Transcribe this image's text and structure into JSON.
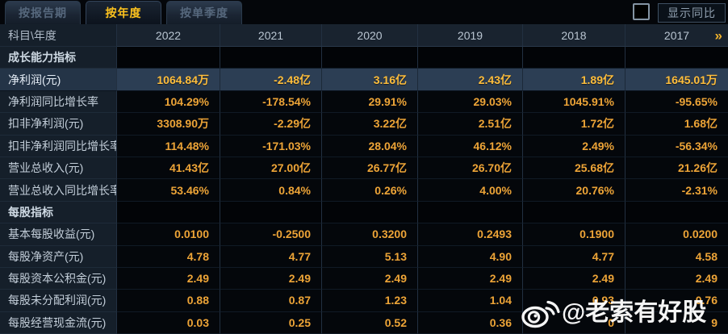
{
  "tabbar": {
    "tabs": [
      {
        "label": "按报告期",
        "active": false
      },
      {
        "label": "按年度",
        "active": true
      },
      {
        "label": "按单季度",
        "active": false
      }
    ],
    "yoy_toggle": {
      "label": "显示同比",
      "checked": false
    }
  },
  "table": {
    "columns": [
      "科目\\年度",
      "2022",
      "2021",
      "2020",
      "2019",
      "2018",
      "2017"
    ],
    "more_indicator": "»",
    "rows": [
      {
        "type": "section",
        "label": "成长能力指标",
        "values": [
          "",
          "",
          "",
          "",
          "",
          ""
        ]
      },
      {
        "type": "data",
        "highlight": true,
        "label": "净利润(元)",
        "values": [
          "1064.84万",
          "-2.48亿",
          "3.16亿",
          "2.43亿",
          "1.89亿",
          "1645.01万"
        ]
      },
      {
        "type": "data",
        "label": "净利润同比增长率",
        "values": [
          "104.29%",
          "-178.54%",
          "29.91%",
          "29.03%",
          "1045.91%",
          "-95.65%"
        ]
      },
      {
        "type": "data",
        "label": "扣非净利润(元)",
        "values": [
          "3308.90万",
          "-2.29亿",
          "3.22亿",
          "2.51亿",
          "1.72亿",
          "1.68亿"
        ]
      },
      {
        "type": "data",
        "label": "扣非净利润同比增长率",
        "values": [
          "114.48%",
          "-171.03%",
          "28.04%",
          "46.12%",
          "2.49%",
          "-56.34%"
        ]
      },
      {
        "type": "data",
        "label": "营业总收入(元)",
        "values": [
          "41.43亿",
          "27.00亿",
          "26.77亿",
          "26.70亿",
          "25.68亿",
          "21.26亿"
        ]
      },
      {
        "type": "data",
        "label": "营业总收入同比增长率",
        "values": [
          "53.46%",
          "0.84%",
          "0.26%",
          "4.00%",
          "20.76%",
          "-2.31%"
        ]
      },
      {
        "type": "section",
        "label": "每股指标",
        "values": [
          "",
          "",
          "",
          "",
          "",
          ""
        ]
      },
      {
        "type": "data",
        "label": "基本每股收益(元)",
        "values": [
          "0.0100",
          "-0.2500",
          "0.3200",
          "0.2493",
          "0.1900",
          "0.0200"
        ]
      },
      {
        "type": "data",
        "label": "每股净资产(元)",
        "values": [
          "4.78",
          "4.77",
          "5.13",
          "4.90",
          "4.77",
          "4.58"
        ]
      },
      {
        "type": "data",
        "label": "每股资本公积金(元)",
        "values": [
          "2.49",
          "2.49",
          "2.49",
          "2.49",
          "2.49",
          "2.49"
        ]
      },
      {
        "type": "data",
        "label": "每股未分配利润(元)",
        "values": [
          "0.88",
          "0.87",
          "1.23",
          "1.04",
          "0.93",
          "0.76"
        ]
      },
      {
        "type": "data",
        "label": "每股经营现金流(元)",
        "values": [
          "0.03",
          "0.25",
          "0.52",
          "0.36",
          "0",
          "9"
        ]
      }
    ]
  },
  "watermark": {
    "text": "@老索有好股"
  },
  "colors": {
    "background": "#05080d",
    "accent_gold": "#eda437",
    "highlight_row": "#2c3e54",
    "tab_active_text": "#ffc41e",
    "label_text": "#c3ced9"
  }
}
